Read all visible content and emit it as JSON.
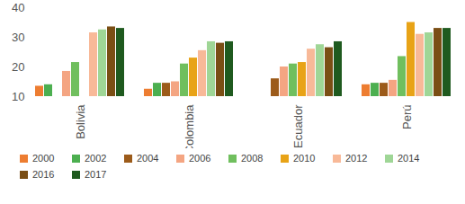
{
  "chart_data": {
    "type": "bar",
    "categories": [
      "Bolivia",
      "Colombia",
      "Ecuador",
      "Perú"
    ],
    "series": [
      {
        "name": "2000",
        "color": "#ed7d31",
        "values": [
          13.5,
          12.5,
          null,
          14
        ]
      },
      {
        "name": "2002",
        "color": "#4caf50",
        "values": [
          14,
          14.5,
          null,
          14.5
        ]
      },
      {
        "name": "2004",
        "color": "#9c5b1a",
        "values": [
          null,
          14.5,
          16,
          14.5
        ]
      },
      {
        "name": "2006",
        "color": "#f4a582",
        "values": [
          18.5,
          15,
          20,
          15.5
        ]
      },
      {
        "name": "2008",
        "color": "#70bf5e",
        "values": [
          21.5,
          21,
          21,
          23.5
        ]
      },
      {
        "name": "2010",
        "color": "#e8a317",
        "values": [
          null,
          23,
          21.5,
          35
        ]
      },
      {
        "name": "2012",
        "color": "#f8b998",
        "values": [
          31.5,
          25.5,
          26,
          31
        ]
      },
      {
        "name": "2014",
        "color": "#9fd696",
        "values": [
          32.5,
          28.5,
          27.5,
          31.5
        ]
      },
      {
        "name": "2016",
        "color": "#7a4e14",
        "values": [
          33.5,
          28,
          26.5,
          33
        ]
      },
      {
        "name": "2017",
        "color": "#1f5a1f",
        "values": [
          33,
          28.5,
          28.5,
          33
        ]
      }
    ],
    "ylim": [
      10,
      40
    ],
    "yticks": [
      10,
      20,
      30,
      40
    ],
    "grid": false,
    "legend": "bottom"
  }
}
